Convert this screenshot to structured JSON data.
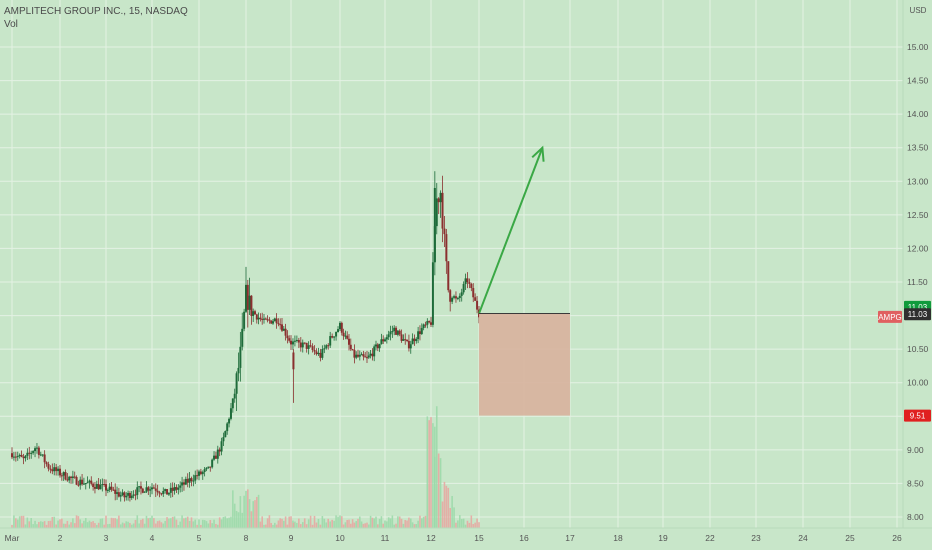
{
  "header": {
    "symbol_title": "AMPLITECH GROUP INC., 15, NASDAQ",
    "indicator": "Vol"
  },
  "colors": {
    "background": "#c8e6c9",
    "grid": "#e4f2e4",
    "up_candle": "#1e6b3a",
    "down_candle": "#8b2f2f",
    "volume_up": "#9ad8a8",
    "volume_down": "#e8a5a0",
    "arrow": "#3aa845",
    "stop_box": "#d8b4a0",
    "label_green": "#109b3c",
    "label_dark": "#2f2f2f",
    "label_red": "#e02020",
    "label_symbol": "#e06060"
  },
  "price_axis": {
    "currency": "USD",
    "labels": [
      "15.00",
      "14.50",
      "14.00",
      "13.50",
      "13.00",
      "12.50",
      "12.00",
      "11.50",
      "11.00",
      "10.50",
      "10.00",
      "9.50",
      "9.00",
      "8.50",
      "8.00"
    ]
  },
  "price_tags": [
    {
      "text": "11.03",
      "price": 11.13,
      "color": "#109b3c"
    },
    {
      "text": "11.03",
      "price": 11.02,
      "color": "#2f2f2f"
    },
    {
      "text": "AMPG",
      "price": 10.98,
      "color": "#e06060"
    },
    {
      "text": "9.51",
      "price": 9.51,
      "color": "#e02020"
    }
  ],
  "time_axis": {
    "labels": [
      {
        "text": "Mar",
        "day": 1
      },
      {
        "text": "2",
        "day": 2
      },
      {
        "text": "3",
        "day": 3
      },
      {
        "text": "4",
        "day": 4
      },
      {
        "text": "5",
        "day": 5
      },
      {
        "text": "8",
        "day": 6
      },
      {
        "text": "9",
        "day": 7
      },
      {
        "text": "10",
        "day": 8
      },
      {
        "text": "11",
        "day": 9
      },
      {
        "text": "12",
        "day": 10
      },
      {
        "text": "15",
        "day": 11
      },
      {
        "text": "16",
        "day": 12
      },
      {
        "text": "17",
        "day": 13
      },
      {
        "text": "18",
        "day": 14
      },
      {
        "text": "19",
        "day": 15
      },
      {
        "text": "22",
        "day": 16
      },
      {
        "text": "23",
        "day": 17
      },
      {
        "text": "24",
        "day": 18
      },
      {
        "text": "25",
        "day": 19
      },
      {
        "text": "26",
        "day": 20
      }
    ]
  },
  "chart_data": {
    "type": "candlestick",
    "title": "AMPLITECH GROUP INC., 15, NASDAQ",
    "ylim": [
      7.85,
      15.35
    ],
    "x_unit": "trading day (1 = Mar 1)",
    "price_path_close": [
      [
        1.0,
        8.95
      ],
      [
        1.25,
        8.85
      ],
      [
        1.5,
        9.05
      ],
      [
        1.75,
        8.75
      ],
      [
        2.0,
        8.65
      ],
      [
        2.3,
        8.55
      ],
      [
        2.6,
        8.5
      ],
      [
        2.9,
        8.45
      ],
      [
        3.1,
        8.4
      ],
      [
        3.4,
        8.3
      ],
      [
        3.7,
        8.4
      ],
      [
        4.0,
        8.45
      ],
      [
        4.3,
        8.35
      ],
      [
        4.6,
        8.45
      ],
      [
        4.9,
        8.6
      ],
      [
        5.2,
        8.7
      ],
      [
        5.5,
        9.1
      ],
      [
        5.75,
        9.8
      ],
      [
        5.9,
        10.5
      ],
      [
        6.0,
        11.3
      ],
      [
        6.15,
        11.05
      ],
      [
        6.4,
        10.9
      ],
      [
        6.7,
        10.95
      ],
      [
        7.0,
        10.6
      ],
      [
        7.3,
        10.55
      ],
      [
        7.6,
        10.4
      ],
      [
        7.8,
        10.65
      ],
      [
        8.0,
        10.85
      ],
      [
        8.3,
        10.4
      ],
      [
        8.6,
        10.35
      ],
      [
        8.9,
        10.6
      ],
      [
        9.2,
        10.8
      ],
      [
        9.5,
        10.55
      ],
      [
        9.8,
        10.8
      ],
      [
        10.0,
        10.9
      ],
      [
        10.1,
        12.7
      ],
      [
        10.2,
        12.85
      ],
      [
        10.35,
        11.4
      ],
      [
        10.55,
        11.2
      ],
      [
        10.75,
        11.55
      ],
      [
        11.0,
        11.03
      ]
    ],
    "volume_max_at_day": 10.0,
    "annotations": [
      {
        "type": "arrow",
        "from": {
          "day": 11.0,
          "price": 11.03
        },
        "to": {
          "day": 12.4,
          "price": 13.5
        },
        "color": "#3aa845"
      },
      {
        "type": "stop_box",
        "day_start": 11.0,
        "day_end": 13.0,
        "price_top": 11.03,
        "price_bottom": 9.51,
        "color": "#d8b4a0"
      }
    ]
  }
}
